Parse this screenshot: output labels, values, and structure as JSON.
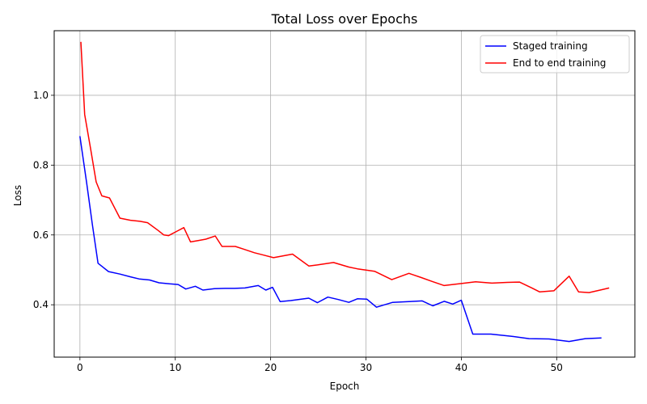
{
  "chart_data": {
    "type": "line",
    "title": "Total Loss over Epochs",
    "xlabel": "Epoch",
    "ylabel": "Loss",
    "xlim": [
      -2.7,
      58.2
    ],
    "ylim": [
      0.25,
      1.185
    ],
    "xticks": [
      0,
      10,
      20,
      30,
      40,
      50
    ],
    "yticks": [
      0.4,
      0.6,
      0.8,
      1.0
    ],
    "ytick_labels": [
      "0.4",
      "0.6",
      "0.8",
      "1.0"
    ],
    "grid": true,
    "legend_position": "top-right",
    "series": [
      {
        "name": "Staged training",
        "color": "#0000ff",
        "x": [
          0.0,
          0.7,
          1.3,
          1.9,
          3.0,
          4.2,
          5.3,
          6.2,
          7.3,
          8.3,
          9.4,
          10.3,
          11.1,
          12.1,
          12.9,
          14.1,
          15.2,
          16.2,
          17.3,
          18.7,
          19.5,
          20.2,
          21.0,
          22.1,
          24.0,
          24.9,
          26.0,
          27.1,
          28.2,
          29.1,
          30.1,
          31.1,
          32.8,
          34.5,
          35.9,
          37.0,
          38.2,
          39.1,
          40.0,
          41.2,
          42.2,
          43.1,
          45.2,
          47.1,
          49.2,
          51.3,
          53.0,
          54.7
        ],
        "y": [
          0.883,
          0.75,
          0.63,
          0.519,
          0.495,
          0.488,
          0.48,
          0.474,
          0.471,
          0.463,
          0.46,
          0.458,
          0.445,
          0.453,
          0.442,
          0.446,
          0.447,
          0.447,
          0.448,
          0.455,
          0.442,
          0.45,
          0.409,
          0.412,
          0.419,
          0.406,
          0.422,
          0.415,
          0.407,
          0.417,
          0.416,
          0.393,
          0.407,
          0.409,
          0.411,
          0.397,
          0.41,
          0.402,
          0.413,
          0.316,
          0.316,
          0.316,
          0.31,
          0.303,
          0.302,
          0.295,
          0.303,
          0.305
        ]
      },
      {
        "name": "End to end training",
        "color": "#ff0000",
        "x": [
          0.1,
          0.5,
          1.1,
          1.7,
          2.3,
          3.1,
          4.2,
          5.3,
          6.3,
          7.1,
          8.2,
          8.8,
          9.3,
          10.2,
          10.9,
          11.6,
          12.4,
          13.2,
          14.2,
          14.9,
          16.3,
          17.1,
          18.3,
          19.3,
          20.3,
          21.5,
          22.3,
          24.0,
          24.9,
          26.6,
          28.2,
          29.1,
          30.9,
          32.7,
          34.5,
          35.8,
          36.9,
          38.2,
          39.1,
          40.1,
          41.5,
          43.2,
          44.8,
          46.1,
          47.4,
          48.2,
          49.7,
          51.3,
          52.3,
          53.4,
          54.7,
          55.5
        ],
        "y": [
          1.153,
          0.945,
          0.85,
          0.752,
          0.712,
          0.706,
          0.648,
          0.642,
          0.639,
          0.635,
          0.613,
          0.6,
          0.598,
          0.611,
          0.621,
          0.58,
          0.584,
          0.588,
          0.597,
          0.567,
          0.567,
          0.56,
          0.549,
          0.542,
          0.535,
          0.541,
          0.545,
          0.511,
          0.514,
          0.521,
          0.508,
          0.503,
          0.496,
          0.472,
          0.49,
          0.478,
          0.467,
          0.455,
          0.458,
          0.461,
          0.466,
          0.462,
          0.464,
          0.465,
          0.448,
          0.437,
          0.44,
          0.482,
          0.437,
          0.435,
          0.443,
          0.448
        ]
      }
    ]
  }
}
